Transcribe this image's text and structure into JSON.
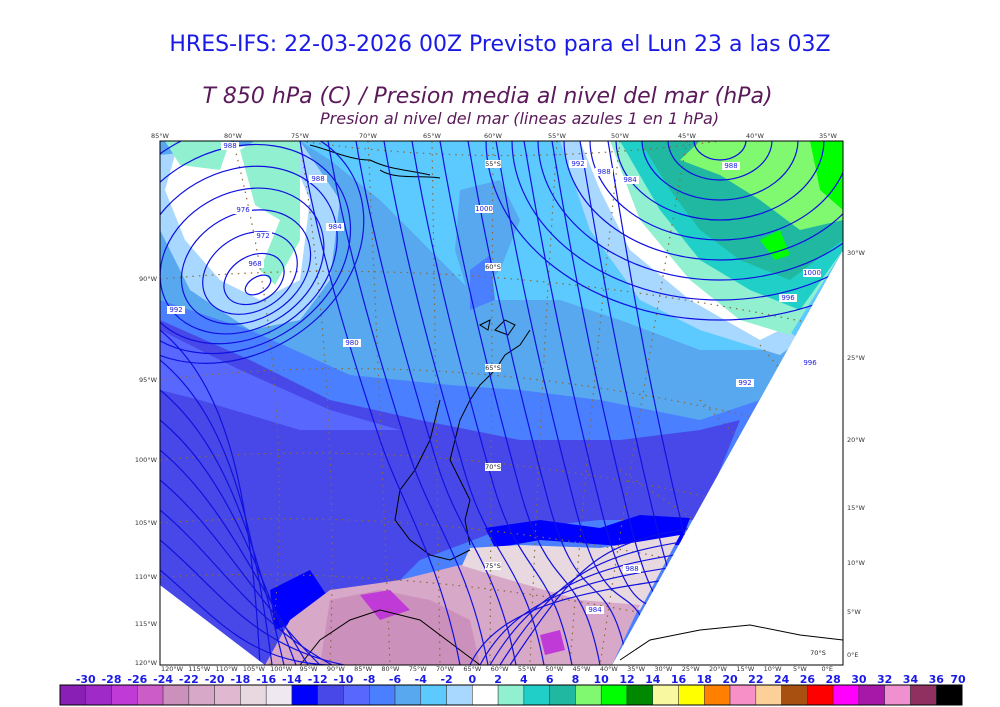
{
  "header": {
    "title": "HRES-IFS: 22-03-2026 00Z Previsto para el Lun 23 a las 03Z",
    "subtitle": "T 850 hPa (C) / Presion media al nivel del mar (hPa)",
    "subtitle2": "Presion al nivel del mar (lineas azules 1 en 1 hPa)"
  },
  "map": {
    "top_lon_labels": [
      "85°W",
      "80°W",
      "75°W",
      "70°W",
      "65°W",
      "60°W",
      "55°W",
      "50°W",
      "45°W",
      "40°W",
      "35°W"
    ],
    "left_lon_labels": [
      "90°W",
      "95°W",
      "100°W",
      "105°W",
      "110°W",
      "115°W",
      "120°W"
    ],
    "right_lon_labels": [
      "30°W",
      "25°W",
      "20°W",
      "15°W",
      "10°W",
      "5°W",
      "0°E"
    ],
    "bottom_lon_labels": [
      "120°W",
      "115°W",
      "110°W",
      "105°W",
      "100°W",
      "95°W",
      "90°W",
      "85°W",
      "80°W",
      "75°W",
      "70°W",
      "65°W",
      "60°W",
      "55°W",
      "50°W",
      "45°W",
      "40°W",
      "35°W",
      "30°W",
      "25°W",
      "20°W",
      "15°W",
      "10°W",
      "5°W",
      "0°E"
    ],
    "lat_labels": [
      "55°S",
      "60°S",
      "65°S",
      "70°S",
      "75°S",
      "70°S"
    ],
    "isobar_labels": [
      "988",
      "976",
      "972",
      "968",
      "988",
      "984",
      "980",
      "1000",
      "992",
      "992",
      "988",
      "984",
      "996",
      "988",
      "1000",
      "996",
      "992",
      "988",
      "984"
    ],
    "isobar_color": "#1010e0",
    "coast_color": "#000000",
    "graticule_color": "#8a6a3a"
  },
  "colorbar": {
    "labels": [
      "-30",
      "-28",
      "-26",
      "-24",
      "-22",
      "-20",
      "-18",
      "-16",
      "-14",
      "-12",
      "-10",
      "-8",
      "-6",
      "-4",
      "-2",
      "0",
      "2",
      "4",
      "6",
      "8",
      "10",
      "12",
      "14",
      "16",
      "18",
      "20",
      "22",
      "24",
      "26",
      "28",
      "30",
      "32",
      "34",
      "36",
      "70"
    ],
    "colors": [
      "#8a1fb5",
      "#a02ac8",
      "#c03ad8",
      "#cc5cc8",
      "#cc90bc",
      "#d8a8c8",
      "#e0b8d0",
      "#e8d8e0",
      "#f0e8f0",
      "#0000ff",
      "#4848e8",
      "#5868ff",
      "#4a80ff",
      "#58a8f0",
      "#5ccaff",
      "#a8d8ff",
      "#ffffff",
      "#90f0d0",
      "#20d0c8",
      "#20b8a0",
      "#80f870",
      "#00ff00",
      "#008800",
      "#f8f8a0",
      "#ffff00",
      "#ff8000",
      "#f890c8",
      "#fcd098",
      "#a85010",
      "#ff0000",
      "#ff00ff",
      "#a818a8",
      "#f090d0",
      "#903060",
      "#000000"
    ]
  }
}
